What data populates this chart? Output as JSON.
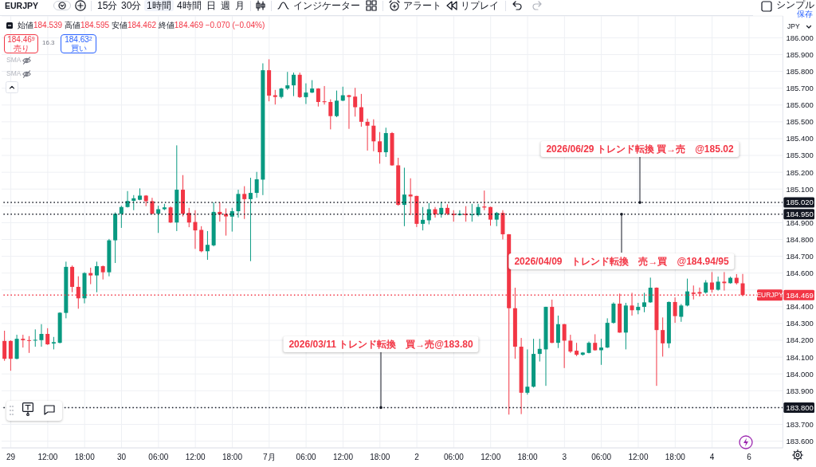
{
  "chart_data": {
    "type": "candlestick",
    "categories": [
      null,
      "29",
      null,
      null,
      null,
      null,
      null,
      "12:00",
      null,
      null,
      null,
      null,
      null,
      "18:00",
      null,
      null,
      null,
      null,
      null,
      "30",
      null,
      null,
      null,
      null,
      null,
      "06:00",
      null,
      null,
      null,
      null,
      null,
      "12:00",
      null,
      null,
      null,
      null,
      null,
      "18:00",
      null,
      null,
      null,
      null,
      null,
      "7月",
      null,
      null,
      null,
      null,
      null,
      "06:00",
      null,
      null,
      null,
      null,
      null,
      "12:00",
      null,
      null,
      null,
      null,
      null,
      "18:00",
      null,
      null,
      null,
      null,
      null,
      "2",
      null,
      null,
      null,
      null,
      null,
      "06:00",
      null,
      null,
      null,
      null,
      null,
      "12:00",
      null,
      null,
      null,
      null,
      null,
      "18:00",
      null,
      null,
      null,
      null,
      null,
      "3",
      null,
      null,
      null,
      null,
      null,
      "06:00",
      null,
      null,
      null,
      null,
      null,
      "12:00",
      null,
      null,
      null,
      null,
      null,
      "18:00",
      null,
      null,
      null,
      null,
      null,
      "4",
      null,
      null,
      null,
      null,
      null,
      "6",
      null,
      null,
      null,
      null,
      null
    ],
    "ohlc": [
      [
        184.196,
        184.257,
        184.078,
        184.09
      ],
      [
        184.196,
        184.2,
        184.019,
        184.09
      ],
      [
        184.09,
        184.233,
        184.087,
        184.209
      ],
      [
        184.209,
        184.233,
        184.157,
        184.201
      ],
      [
        184.201,
        184.225,
        184.125,
        184.201
      ],
      [
        184.201,
        184.265,
        184.162,
        184.203
      ],
      [
        184.201,
        184.296,
        184.162,
        184.238
      ],
      [
        184.238,
        184.272,
        184.173,
        184.176
      ],
      [
        184.181,
        184.22,
        184.146,
        184.189
      ],
      [
        184.185,
        184.367,
        184.182,
        184.364
      ],
      [
        184.363,
        184.668,
        184.331,
        184.637
      ],
      [
        184.637,
        184.645,
        184.486,
        184.518
      ],
      [
        184.518,
        184.581,
        184.388,
        184.45
      ],
      [
        184.45,
        184.605,
        184.42,
        184.6
      ],
      [
        184.6,
        184.632,
        184.534,
        184.586
      ],
      [
        184.586,
        184.668,
        184.486,
        184.641
      ],
      [
        184.641,
        184.645,
        184.562,
        184.605
      ],
      [
        184.605,
        184.803,
        184.581,
        184.795
      ],
      [
        184.795,
        184.961,
        184.66,
        184.953
      ],
      [
        184.953,
        185.001,
        184.869,
        184.993
      ],
      [
        184.993,
        185.088,
        184.99,
        185.029
      ],
      [
        185.03,
        185.064,
        184.974,
        185.045
      ],
      [
        185.036,
        185.104,
        185.033,
        185.061
      ],
      [
        185.061,
        185.064,
        184.998,
        185.028
      ],
      [
        185.028,
        185.048,
        184.949,
        184.953
      ],
      [
        184.953,
        185.001,
        184.839,
        184.98
      ],
      [
        184.98,
        185.012,
        184.974,
        184.991
      ],
      [
        184.991,
        184.996,
        184.898,
        184.901
      ],
      [
        184.901,
        185.36,
        184.85,
        185.096
      ],
      [
        185.096,
        185.183,
        184.937,
        184.953
      ],
      [
        184.958,
        184.988,
        184.873,
        184.901
      ],
      [
        184.904,
        184.974,
        184.744,
        184.854
      ],
      [
        184.857,
        184.879,
        184.724,
        184.73
      ],
      [
        184.73,
        184.85,
        184.679,
        184.768
      ],
      [
        184.765,
        185.021,
        184.759,
        184.964
      ],
      [
        184.964,
        185.021,
        184.906,
        184.949
      ],
      [
        184.952,
        184.985,
        184.823,
        184.937
      ],
      [
        184.936,
        184.988,
        184.847,
        184.968
      ],
      [
        184.968,
        185.096,
        184.93,
        185.071
      ],
      [
        185.071,
        185.117,
        184.922,
        185.04
      ],
      [
        185.04,
        185.167,
        184.671,
        185.077
      ],
      [
        185.077,
        185.202,
        185.048,
        185.158
      ],
      [
        185.156,
        185.848,
        185.064,
        185.807
      ],
      [
        185.807,
        185.872,
        185.622,
        185.656
      ],
      [
        185.658,
        185.69,
        185.603,
        185.648
      ],
      [
        185.648,
        185.702,
        185.639,
        185.698
      ],
      [
        185.698,
        185.797,
        185.69,
        185.717
      ],
      [
        185.717,
        185.793,
        185.653,
        185.78
      ],
      [
        185.78,
        185.793,
        185.642,
        185.647
      ],
      [
        185.647,
        185.729,
        185.606,
        185.674
      ],
      [
        185.674,
        185.748,
        185.671,
        185.698
      ],
      [
        185.698,
        185.7,
        185.591,
        185.618
      ],
      [
        185.622,
        185.713,
        185.603,
        185.617
      ],
      [
        185.618,
        185.634,
        185.455,
        185.534
      ],
      [
        185.534,
        185.686,
        185.528,
        185.626
      ],
      [
        185.626,
        185.709,
        185.623,
        185.658
      ],
      [
        185.658,
        185.661,
        185.458,
        185.648
      ],
      [
        185.65,
        185.702,
        185.531,
        185.587
      ],
      [
        185.587,
        185.666,
        185.471,
        185.5
      ],
      [
        185.5,
        185.519,
        185.329,
        185.477
      ],
      [
        185.477,
        185.515,
        185.325,
        185.384
      ],
      [
        185.384,
        185.439,
        185.251,
        185.319
      ],
      [
        185.319,
        185.465,
        185.291,
        185.433
      ],
      [
        185.433,
        185.439,
        185.238,
        185.241
      ],
      [
        185.241,
        185.286,
        185.001,
        185.006
      ],
      [
        185.006,
        185.227,
        184.879,
        185.067
      ],
      [
        185.067,
        185.164,
        184.945,
        185.056
      ],
      [
        185.059,
        185.06,
        184.874,
        184.893
      ],
      [
        184.893,
        184.993,
        184.854,
        184.917
      ],
      [
        184.914,
        185.017,
        184.89,
        184.98
      ],
      [
        184.98,
        184.993,
        184.93,
        184.949
      ],
      [
        184.949,
        185.025,
        184.93,
        184.988
      ],
      [
        184.988,
        185.009,
        184.945,
        184.953
      ],
      [
        184.953,
        184.974,
        184.906,
        184.945
      ],
      [
        184.945,
        184.974,
        184.942,
        184.953
      ],
      [
        184.953,
        184.998,
        184.906,
        184.945
      ],
      [
        184.945,
        185.012,
        184.906,
        184.949
      ],
      [
        184.945,
        185.012,
        184.937,
        184.993
      ],
      [
        184.996,
        185.091,
        184.974,
        184.99
      ],
      [
        184.993,
        184.995,
        184.882,
        184.918
      ],
      [
        184.918,
        184.964,
        184.879,
        184.958
      ],
      [
        184.958,
        184.974,
        184.8,
        184.831
      ],
      [
        184.831,
        184.832,
        183.758,
        184.391
      ],
      [
        184.391,
        184.513,
        184.09,
        184.162
      ],
      [
        184.162,
        184.214,
        183.761,
        183.888
      ],
      [
        183.888,
        184.146,
        183.877,
        183.924
      ],
      [
        183.924,
        184.209,
        183.919,
        184.119
      ],
      [
        184.119,
        184.209,
        184.074,
        184.149
      ],
      [
        184.146,
        184.4,
        183.929,
        184.399
      ],
      [
        184.399,
        184.442,
        184.183,
        184.185
      ],
      [
        184.185,
        184.347,
        184.154,
        184.296
      ],
      [
        184.296,
        184.298,
        184.035,
        184.198
      ],
      [
        184.198,
        184.233,
        184.125,
        184.133
      ],
      [
        184.138,
        184.185,
        184.106,
        184.114
      ],
      [
        184.114,
        184.13,
        184.109,
        184.127
      ],
      [
        184.125,
        184.193,
        184.122,
        184.185
      ],
      [
        184.185,
        184.236,
        184.138,
        184.141
      ],
      [
        184.141,
        184.209,
        184.054,
        184.157
      ],
      [
        184.157,
        184.331,
        184.154,
        184.304
      ],
      [
        184.304,
        184.426,
        184.299,
        184.418
      ],
      [
        184.418,
        184.478,
        184.245,
        184.246
      ],
      [
        184.246,
        184.423,
        184.146,
        184.407
      ],
      [
        184.407,
        184.483,
        184.347,
        184.379
      ],
      [
        184.379,
        184.423,
        184.355,
        184.399
      ],
      [
        184.399,
        184.483,
        184.367,
        184.426
      ],
      [
        184.426,
        184.573,
        184.423,
        184.513
      ],
      [
        184.513,
        184.515,
        183.929,
        184.261
      ],
      [
        184.261,
        184.336,
        184.103,
        184.182
      ],
      [
        184.182,
        184.431,
        184.154,
        184.428
      ],
      [
        184.428,
        184.455,
        184.304,
        184.344
      ],
      [
        184.34,
        184.416,
        184.31,
        184.407
      ],
      [
        184.407,
        184.567,
        184.402,
        184.491
      ],
      [
        184.484,
        184.526,
        184.443,
        184.476
      ],
      [
        184.487,
        184.514,
        184.46,
        184.478
      ],
      [
        184.484,
        184.558,
        184.478,
        184.544
      ],
      [
        184.544,
        184.606,
        184.484,
        184.501
      ],
      [
        184.501,
        184.579,
        184.496,
        184.549
      ],
      [
        184.549,
        184.606,
        184.496,
        184.54
      ],
      [
        184.54,
        184.579,
        184.537,
        184.572
      ],
      [
        184.572,
        184.594,
        184.532,
        184.54
      ],
      [
        184.539,
        184.595,
        184.462,
        184.469
      ],
      null,
      null,
      null,
      null,
      null,
      null
    ],
    "colors": [
      "#f23645",
      "#f23645",
      "#089981",
      "#f23645",
      "#f23645",
      "#089981",
      "#089981",
      "#f23645",
      "#089981",
      "#089981",
      "#089981",
      "#f23645",
      "#f23645",
      "#089981",
      "#f23645",
      "#089981",
      "#f23645",
      "#089981",
      "#089981",
      "#089981",
      "#089981",
      "#089981",
      "#089981",
      "#f23645",
      "#f23645",
      "#089981",
      "#089981",
      "#f23645",
      "#089981",
      "#f23645",
      "#f23645",
      "#f23645",
      "#f23645",
      "#089981",
      "#089981",
      "#f23645",
      "#f23645",
      "#089981",
      "#089981",
      "#f23645",
      "#089981",
      "#089981",
      "#089981",
      "#f23645",
      "#f23645",
      "#089981",
      "#089981",
      "#089981",
      "#f23645",
      "#089981",
      "#089981",
      "#f23645",
      "#f23645",
      "#f23645",
      "#089981",
      "#089981",
      "#f23645",
      "#f23645",
      "#f23645",
      "#f23645",
      "#f23645",
      "#f23645",
      "#089981",
      "#f23645",
      "#f23645",
      "#089981",
      "#f23645",
      "#f23645",
      "#089981",
      "#089981",
      "#f23645",
      "#089981",
      "#f23645",
      "#f23645",
      "#089981",
      "#f23645",
      "#089981",
      "#089981",
      "#f23645",
      "#f23645",
      "#089981",
      "#f23645",
      "#f23645",
      "#f23645",
      "#f23645",
      "#089981",
      "#089981",
      "#089981",
      "#089981",
      "#f23645",
      "#089981",
      "#f23645",
      "#f23645",
      "#f23645",
      "#089981",
      "#089981",
      "#f23645",
      "#089981",
      "#089981",
      "#089981",
      "#f23645",
      "#089981",
      "#f23645",
      "#089981",
      "#089981",
      "#089981",
      "#f23645",
      "#f23645",
      "#089981",
      "#f23645",
      "#089981",
      "#089981",
      "#f23645",
      "#f23645",
      "#089981",
      "#f23645",
      "#089981",
      "#f23645",
      "#089981",
      "#f23645",
      "#f23645",
      null,
      null,
      null,
      null,
      null,
      null
    ],
    "ylim": [
      183.56,
      186.13
    ],
    "yticks": [
      {
        "value": 183.6,
        "label": "183.600"
      },
      {
        "value": 183.7,
        "label": "183.700"
      },
      {
        "value": 183.8,
        "label": null
      },
      {
        "value": 183.9,
        "label": "183.900"
      },
      {
        "value": 184.0,
        "label": "184.000"
      },
      {
        "value": 184.1,
        "label": "184.100"
      },
      {
        "value": 184.2,
        "label": "184.200"
      },
      {
        "value": 184.3,
        "label": "184.300"
      },
      {
        "value": 184.4,
        "label": "184.400"
      },
      {
        "value": 184.5,
        "label": null
      },
      {
        "value": 184.6,
        "label": "184.600"
      },
      {
        "value": 184.7,
        "label": "184.700"
      },
      {
        "value": 184.8,
        "label": "184.800"
      },
      {
        "value": 184.9,
        "label": "184.900"
      },
      {
        "value": 185.0,
        "label": null
      },
      {
        "value": 185.1,
        "label": "185.100"
      },
      {
        "value": 185.2,
        "label": "185.200"
      },
      {
        "value": 185.3,
        "label": "185.300"
      },
      {
        "value": 185.4,
        "label": "185.400"
      },
      {
        "value": 185.5,
        "label": "185.500"
      },
      {
        "value": 185.6,
        "label": "185.600"
      },
      {
        "value": 185.7,
        "label": "185.700"
      },
      {
        "value": 185.8,
        "label": "185.800"
      },
      {
        "value": 185.9,
        "label": "185.900"
      },
      {
        "value": 186.0,
        "label": "186.000"
      }
    ],
    "grid": true,
    "ref_lines": [
      {
        "axis": "y",
        "value": 185.02,
        "label": "185.020",
        "color": "#131722",
        "line_style": "dotted"
      },
      {
        "axis": "y",
        "value": 184.95,
        "label": "184.950",
        "color": "#131722",
        "line_style": "dotted"
      },
      {
        "axis": "y",
        "value": 183.8,
        "label": "183.800",
        "color": "#131722",
        "line_style": "dotted"
      },
      {
        "axis": "y",
        "value": 184.469,
        "label": "184.469",
        "color": "#f23645",
        "line_style": "dotted"
      }
    ],
    "annotations": [
      "EURJPY",
      "15分",
      "30分",
      "1時間",
      "4時間",
      "日",
      "週",
      "月",
      "インジケーター",
      "アラート",
      "リプレイ",
      "シンプル",
      "保存",
      "始値184.539 高値184.595 安値184.462 終値184.469 −0.070 (−0.04%)",
      "184.46$^{9}$",
      "売り",
      "16.3",
      "184.63$^{2}$",
      "買い",
      "SMA",
      "SMA",
      "JPY",
      {
        "text": "2026/06/29 トレンド転換 買→売　@185.02",
        "y": 185.02
      },
      {
        "text": "2026/04/09　トレンド転換　売→買　@184.94/95",
        "y": 184.95
      },
      {
        "text": "2026/03/11 トレンド転換　買→売@183.80",
        "y": 183.8
      },
      {
        "text": "EURJPY",
        "y": 184.469
      }
    ]
  }
}
